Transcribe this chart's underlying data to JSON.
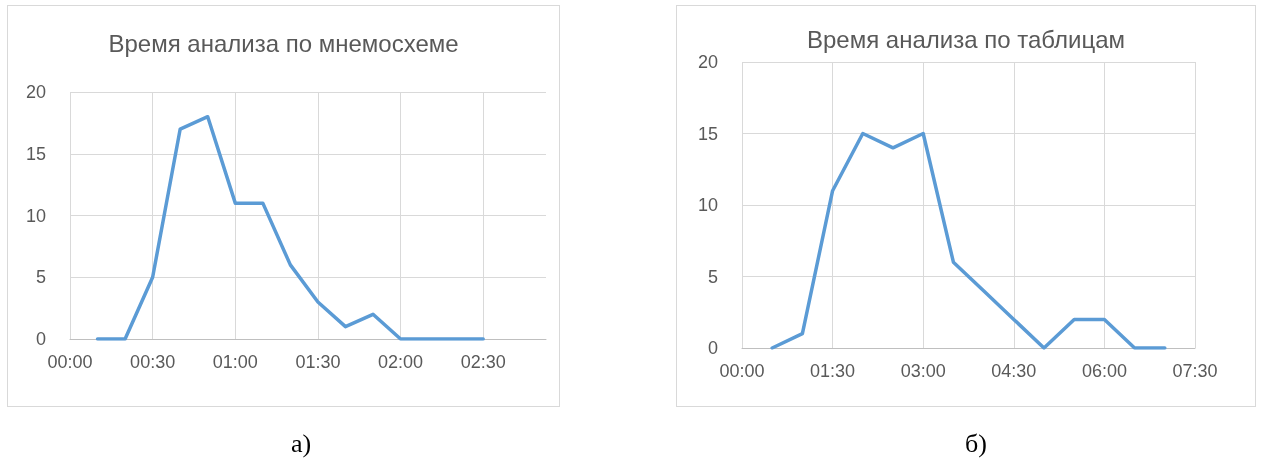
{
  "chart_data": [
    {
      "type": "line",
      "title": "Время анализа по мнемосхеме",
      "x": [
        0.1667,
        0.3333,
        0.5,
        0.6667,
        0.8333,
        1,
        1.1667,
        1.3333,
        1.5,
        1.6667,
        1.8333,
        2,
        2.1667,
        2.3333,
        2.5
      ],
      "series": [
        {
          "color": "#5b9bd5",
          "values": [
            0,
            0,
            5,
            17,
            18,
            11,
            11,
            6,
            3,
            1,
            2,
            0,
            0,
            0,
            0
          ]
        }
      ],
      "xlim": [
        0,
        2.88
      ],
      "xticks": [
        {
          "value": 0,
          "label": "00:00"
        },
        {
          "value": 0.5,
          "label": "00:30"
        },
        {
          "value": 1,
          "label": "01:00"
        },
        {
          "value": 1.5,
          "label": "01:30"
        },
        {
          "value": 2,
          "label": "02:00"
        },
        {
          "value": 2.5,
          "label": "02:30"
        }
      ],
      "ylim": [
        0,
        20
      ],
      "yticks": [
        0,
        5,
        10,
        15,
        20
      ],
      "grid": true,
      "marker": "none",
      "line_style": "solid",
      "annotations": [
        "а)"
      ]
    },
    {
      "type": "line",
      "title": "Время анализа по таблицам",
      "x": [
        0.5,
        1,
        1.5,
        2,
        2.5,
        3,
        3.5,
        4,
        4.5,
        5,
        5.5,
        6,
        6.5,
        7
      ],
      "series": [
        {
          "color": "#5b9bd5",
          "values": [
            0,
            1,
            11,
            15,
            14,
            15,
            6,
            4,
            2,
            0,
            2,
            2,
            0,
            0
          ]
        }
      ],
      "xlim": [
        0,
        7.5
      ],
      "xticks": [
        {
          "value": 0,
          "label": "00:00"
        },
        {
          "value": 1.5,
          "label": "01:30"
        },
        {
          "value": 3,
          "label": "03:00"
        },
        {
          "value": 4.5,
          "label": "04:30"
        },
        {
          "value": 6,
          "label": "06:00"
        },
        {
          "value": 7.5,
          "label": "07:30"
        }
      ],
      "ylim": [
        0,
        20
      ],
      "yticks": [
        0,
        5,
        10,
        15,
        20
      ],
      "grid": true,
      "marker": "none",
      "line_style": "solid",
      "annotations": [
        "б)"
      ]
    }
  ]
}
